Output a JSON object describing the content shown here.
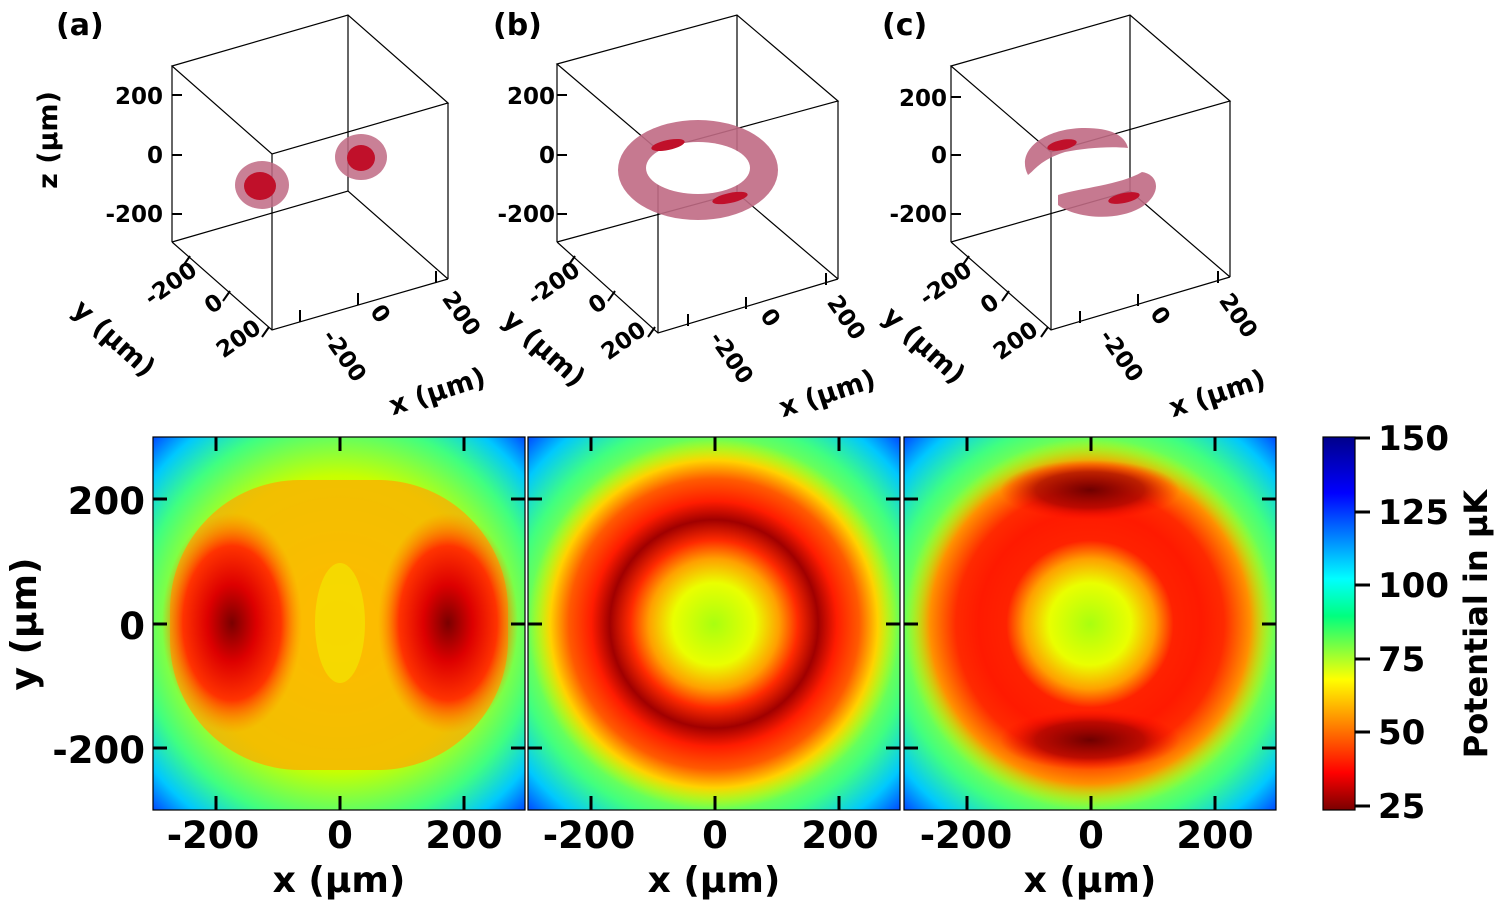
{
  "chart_data": [
    {
      "type": "isosurface-3d",
      "panel_label": "(a)",
      "xlabel": "x (µm)",
      "ylabel": "y (µm)",
      "zlabel": "z (µm)",
      "x_ticks": [
        "-200",
        "0",
        "200"
      ],
      "y_ticks": [
        "-200",
        "0",
        "200"
      ],
      "z_ticks": [
        "200",
        "0",
        "-200"
      ],
      "structure": "double-well"
    },
    {
      "type": "isosurface-3d",
      "panel_label": "(b)",
      "xlabel": "x (µm)",
      "ylabel": "y (µm)",
      "x_ticks": [
        "-200",
        "0",
        "200"
      ],
      "y_ticks": [
        "-200",
        "0",
        "200"
      ],
      "z_ticks": [
        "200",
        "0",
        "-200"
      ],
      "structure": "ring"
    },
    {
      "type": "isosurface-3d",
      "panel_label": "(c)",
      "xlabel": "x (µm)",
      "ylabel": "y (µm)",
      "x_ticks": [
        "-200",
        "0",
        "200"
      ],
      "y_ticks": [
        "-200",
        "0",
        "200"
      ],
      "z_ticks": [
        "200",
        "0",
        "-200"
      ],
      "structure": "split-ring"
    },
    {
      "type": "heatmap",
      "xlabel": "x (µm)",
      "ylabel": "y (µm)",
      "x_ticks": [
        "-200",
        "0",
        "200"
      ],
      "y_ticks": [
        "200",
        "0",
        "-200"
      ],
      "xlim": [
        -300,
        300
      ],
      "ylim": [
        -300,
        300
      ],
      "structure": "double-well",
      "minima": [
        {
          "x": -175,
          "y": 0
        },
        {
          "x": 175,
          "y": 0
        }
      ]
    },
    {
      "type": "heatmap",
      "xlabel": "x (µm)",
      "x_ticks": [
        "-200",
        "0",
        "200"
      ],
      "xlim": [
        -300,
        300
      ],
      "ylim": [
        -300,
        300
      ],
      "structure": "ring",
      "ring_radius": 170
    },
    {
      "type": "heatmap",
      "xlabel": "x (µm)",
      "x_ticks": [
        "-200",
        "0",
        "200"
      ],
      "xlim": [
        -300,
        300
      ],
      "ylim": [
        -300,
        300
      ],
      "structure": "split-ring",
      "ring_radius": 170
    },
    {
      "type": "colorbar",
      "label": "Potential in µK",
      "ticks": [
        "150",
        "125",
        "100",
        "75",
        "50",
        "25"
      ],
      "range": [
        25,
        150
      ],
      "colormap": [
        "#7a0000",
        "#ff0000",
        "#ffff00",
        "#00ff7f",
        "#00ffff",
        "#0000ff",
        "#00008b"
      ]
    }
  ]
}
